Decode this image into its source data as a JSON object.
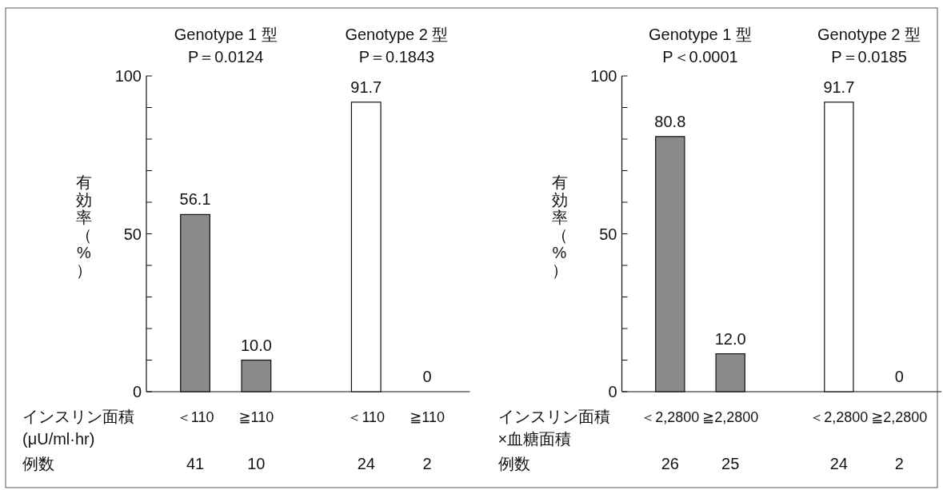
{
  "chart_data": [
    {
      "type": "bar",
      "ylabel": "有効率（%）",
      "xlabel": "インスリン面積\n(μU/ml·hr)",
      "categories": [
        "＜110",
        "≧110",
        "＜110",
        "≧110"
      ],
      "values": [
        56.1,
        10.0,
        91.7,
        0
      ],
      "value_labels": [
        "56.1",
        "10.0",
        "91.7",
        "0"
      ],
      "colors": [
        "#8a8a8a",
        "#8a8a8a",
        "#ffffff",
        "#ffffff"
      ],
      "ylim": [
        0,
        100
      ],
      "yticks": [
        0,
        {
          "value": 10,
          "label": null
        },
        {
          "value": 20,
          "label": null
        },
        {
          "value": 30,
          "label": null
        },
        {
          "value": 40,
          "label": null
        },
        50,
        {
          "value": 60,
          "label": null
        },
        {
          "value": 70,
          "label": null
        },
        {
          "value": 80,
          "label": null
        },
        {
          "value": 90,
          "label": null
        },
        100
      ],
      "grid": false,
      "annotations": [
        "Genotype 1 型\nP＝0.0124",
        "Genotype 2 型\nP＝0.1843",
        "例数",
        "41",
        "10",
        "24",
        "2"
      ]
    },
    {
      "type": "bar",
      "ylabel": "有効率（%）",
      "xlabel": "インスリン面積\n×血糖面積",
      "categories": [
        "＜2,2800",
        "≧2,2800",
        "＜2,2800",
        "≧2,2800"
      ],
      "values": [
        80.8,
        12.0,
        91.7,
        0
      ],
      "value_labels": [
        "80.8",
        "12.0",
        "91.7",
        "0"
      ],
      "colors": [
        "#8a8a8a",
        "#8a8a8a",
        "#ffffff",
        "#ffffff"
      ],
      "ylim": [
        0,
        100
      ],
      "yticks": [
        0,
        {
          "value": 10,
          "label": null
        },
        {
          "value": 20,
          "label": null
        },
        {
          "value": 30,
          "label": null
        },
        {
          "value": 40,
          "label": null
        },
        50,
        {
          "value": 60,
          "label": null
        },
        {
          "value": 70,
          "label": null
        },
        {
          "value": 80,
          "label": null
        },
        {
          "value": 90,
          "label": null
        },
        100
      ],
      "grid": false,
      "annotations": [
        "Genotype 1 型\nP＜0.0001",
        "Genotype 2 型\nP＝0.0185",
        "例数",
        "26",
        "25",
        "24",
        "2"
      ]
    }
  ]
}
